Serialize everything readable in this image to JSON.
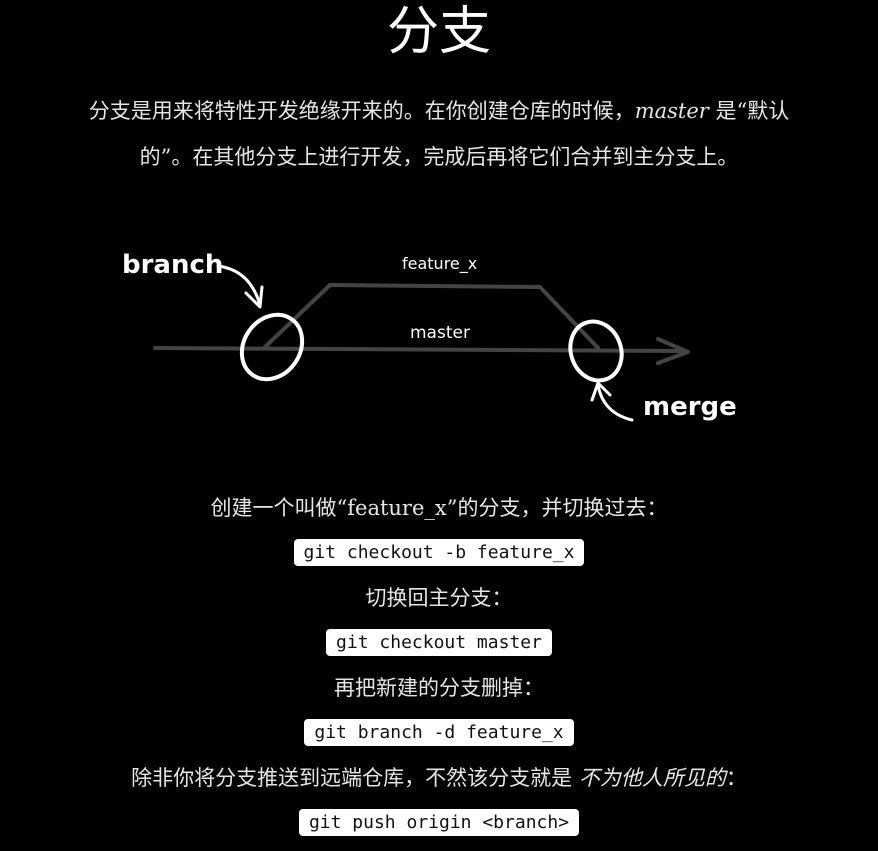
{
  "page": {
    "title": "分支",
    "intro": {
      "before": "分支是用来将特性开发绝缘开来的。在你创建仓库的时候，",
      "master_word": "master",
      "after": " 是“默认的”。在其他分支上进行开发，完成后再将它们合并到主分支上。"
    }
  },
  "diagram": {
    "labels": {
      "branch": "branch",
      "feature": "feature_x",
      "master": "master",
      "merge": "merge"
    },
    "colors": {
      "line": "#444444",
      "ink": "#ffffff"
    }
  },
  "steps": [
    {
      "text": "创建一个叫做“feature_x”的分支，并切换过去：",
      "code": "git checkout -b feature_x"
    },
    {
      "text": "切换回主分支：",
      "code": "git checkout master"
    },
    {
      "text": "再把新建的分支删掉：",
      "code": "git branch -d feature_x"
    }
  ],
  "push": {
    "text_before": "除非你将分支推送到远端仓库，不然该分支就是 ",
    "text_em": "不为他人所见的",
    "text_after": "：",
    "code": "git push origin <branch>"
  }
}
